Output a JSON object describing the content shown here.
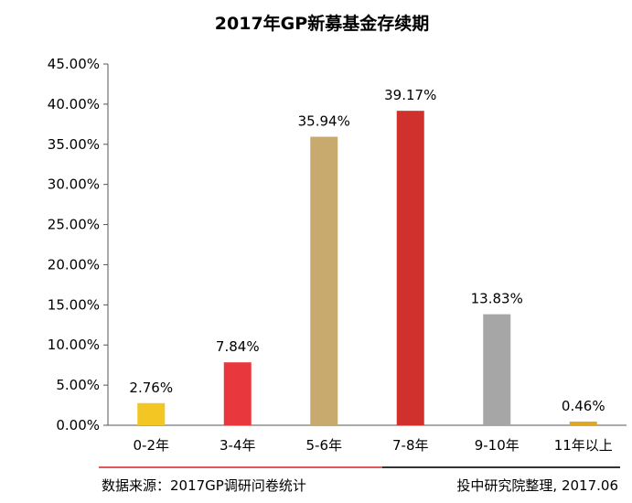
{
  "chart_data": {
    "type": "bar",
    "title": "2017年GP新募基金存续期",
    "xlabel": "",
    "ylabel": "",
    "categories": [
      "0-2年",
      "3-4年",
      "5-6年",
      "7-8年",
      "9-10年",
      "11年以上"
    ],
    "values": [
      2.76,
      7.84,
      35.94,
      39.17,
      13.83,
      0.46
    ],
    "data_labels": [
      "2.76%",
      "7.84%",
      "35.94%",
      "39.17%",
      "13.83%",
      "0.46%"
    ],
    "colors": [
      "#f3c623",
      "#e8383d",
      "#c8a96e",
      "#d0312d",
      "#a6a6a6",
      "#e0a820"
    ],
    "ylim": [
      0,
      45
    ],
    "yticks": [
      0,
      5,
      10,
      15,
      20,
      25,
      30,
      35,
      40,
      45
    ],
    "ytick_labels": [
      "0.00%",
      "5.00%",
      "10.00%",
      "15.00%",
      "20.00%",
      "25.00%",
      "30.00%",
      "35.00%",
      "40.00%",
      "45.00%"
    ],
    "grid": false,
    "legend": "none"
  },
  "footer": {
    "source_left": "数据来源：2017GP调研问卷统计",
    "source_right": "投中研究院整理, 2017.06",
    "rule_left_color": "#e05a5a",
    "rule_right_color": "#333333"
  }
}
